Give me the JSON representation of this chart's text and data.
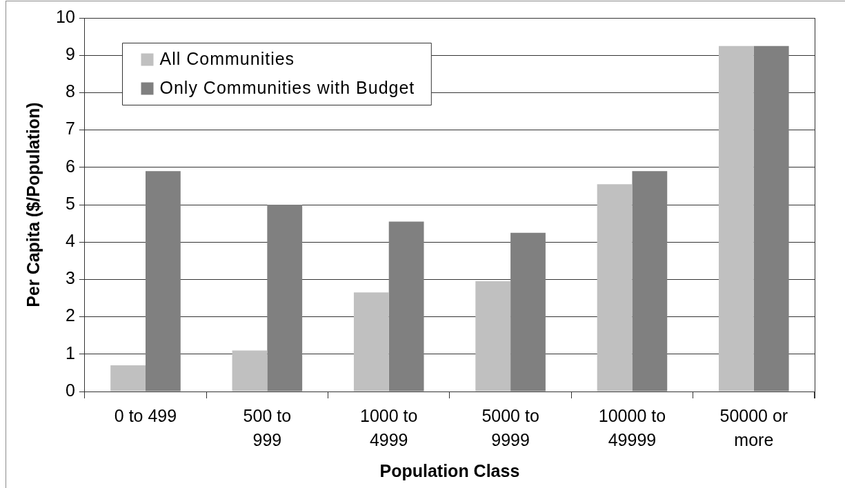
{
  "chart_data": {
    "type": "bar",
    "xlabel": "Population Class",
    "ylabel": "Per Capita ($/Population)",
    "categories": [
      "0 to 499",
      "500 to 999",
      "1000 to 4999",
      "5000 to 9999",
      "10000 to 49999",
      "50000 or more"
    ],
    "series": [
      {
        "name": "All Communities",
        "color": "#c0c0c0",
        "values": [
          0.7,
          1.1,
          2.65,
          2.95,
          5.55,
          9.25
        ]
      },
      {
        "name": "Only Communities with Budget",
        "color": "#808080",
        "values": [
          5.9,
          5.0,
          4.55,
          4.25,
          5.9,
          9.25
        ]
      }
    ],
    "ylim": [
      0,
      10
    ],
    "yticks": [
      0,
      1,
      2,
      3,
      4,
      5,
      6,
      7,
      8,
      9,
      10
    ],
    "grid": "y",
    "legend": "top left"
  }
}
